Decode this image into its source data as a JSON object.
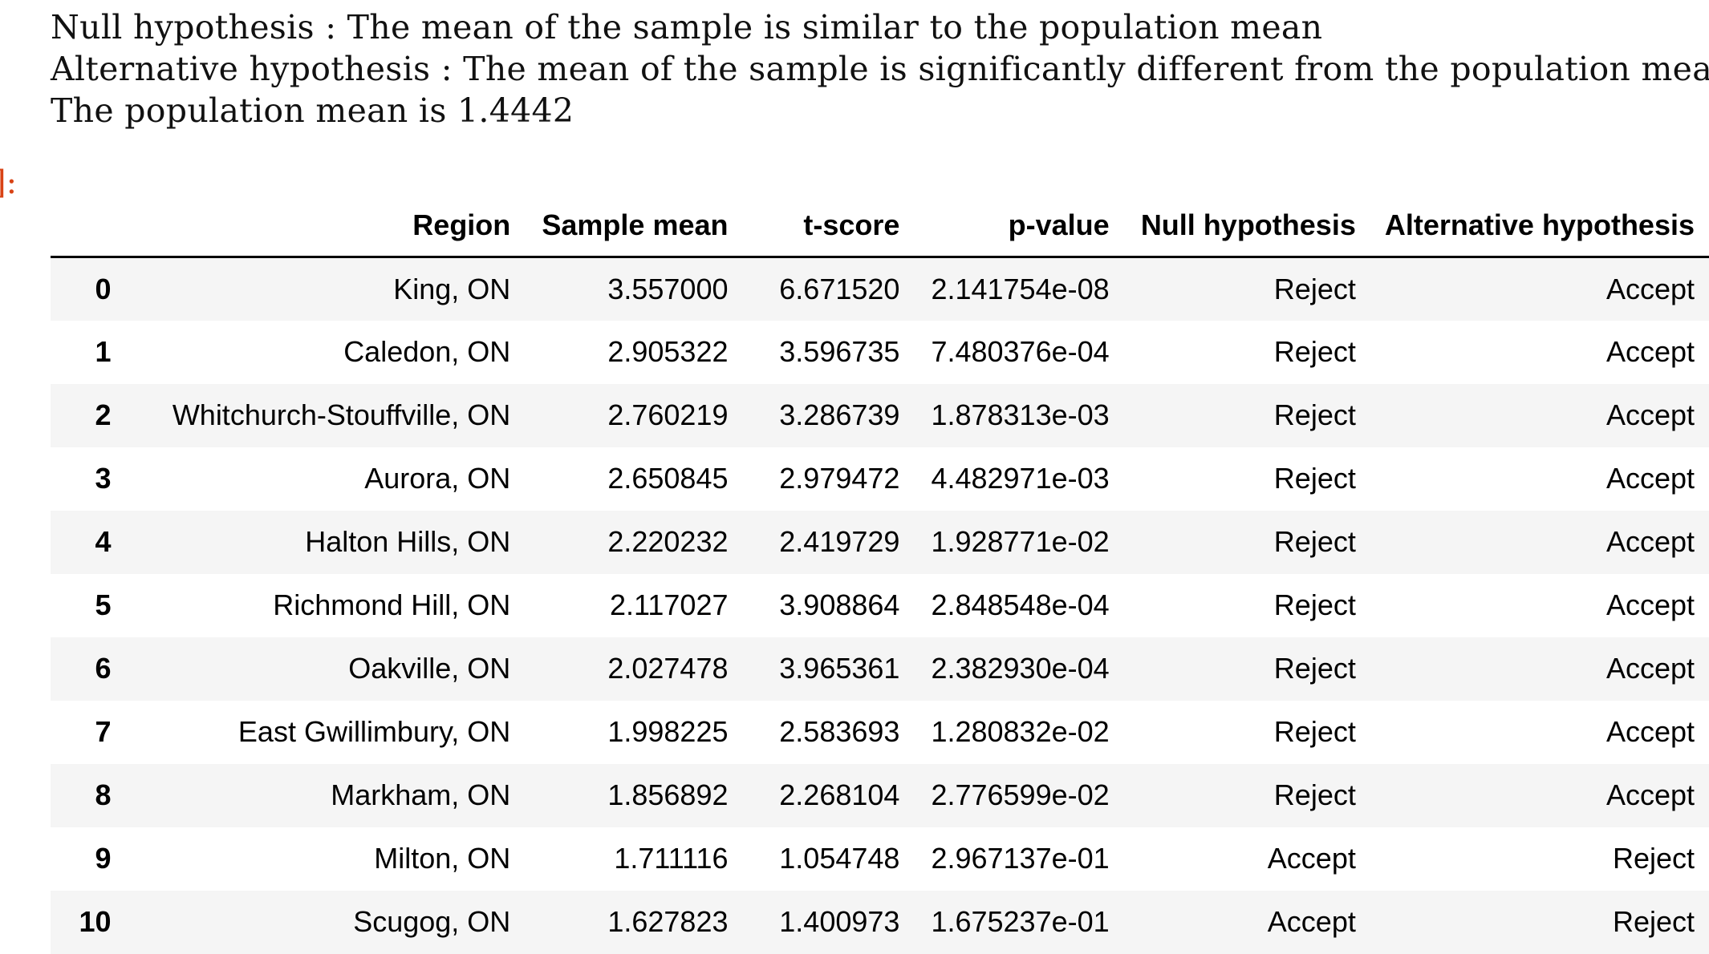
{
  "output": {
    "lines": [
      "Null hypothesis : The mean of the sample is similar to the population mean",
      "Alternative hypothesis : The mean of the sample is significantly different from the population mean",
      "The population mean is 1.4442"
    ],
    "prompt": "]:"
  },
  "table": {
    "columns": [
      "",
      "Region",
      "Sample mean",
      "t-score",
      "p-value",
      "Null hypothesis",
      "Alternative hypothesis"
    ],
    "rows": [
      [
        "0",
        "King, ON",
        "3.557000",
        "6.671520",
        "2.141754e-08",
        "Reject",
        "Accept"
      ],
      [
        "1",
        "Caledon, ON",
        "2.905322",
        "3.596735",
        "7.480376e-04",
        "Reject",
        "Accept"
      ],
      [
        "2",
        "Whitchurch-Stouffville, ON",
        "2.760219",
        "3.286739",
        "1.878313e-03",
        "Reject",
        "Accept"
      ],
      [
        "3",
        "Aurora, ON",
        "2.650845",
        "2.979472",
        "4.482971e-03",
        "Reject",
        "Accept"
      ],
      [
        "4",
        "Halton Hills, ON",
        "2.220232",
        "2.419729",
        "1.928771e-02",
        "Reject",
        "Accept"
      ],
      [
        "5",
        "Richmond Hill, ON",
        "2.117027",
        "3.908864",
        "2.848548e-04",
        "Reject",
        "Accept"
      ],
      [
        "6",
        "Oakville, ON",
        "2.027478",
        "3.965361",
        "2.382930e-04",
        "Reject",
        "Accept"
      ],
      [
        "7",
        "East Gwillimbury, ON",
        "1.998225",
        "2.583693",
        "1.280832e-02",
        "Reject",
        "Accept"
      ],
      [
        "8",
        "Markham, ON",
        "1.856892",
        "2.268104",
        "2.776599e-02",
        "Reject",
        "Accept"
      ],
      [
        "9",
        "Milton, ON",
        "1.711116",
        "1.054748",
        "2.967137e-01",
        "Accept",
        "Reject"
      ],
      [
        "10",
        "Scugog, ON",
        "1.627823",
        "1.400973",
        "1.675237e-01",
        "Accept",
        "Reject"
      ]
    ]
  }
}
